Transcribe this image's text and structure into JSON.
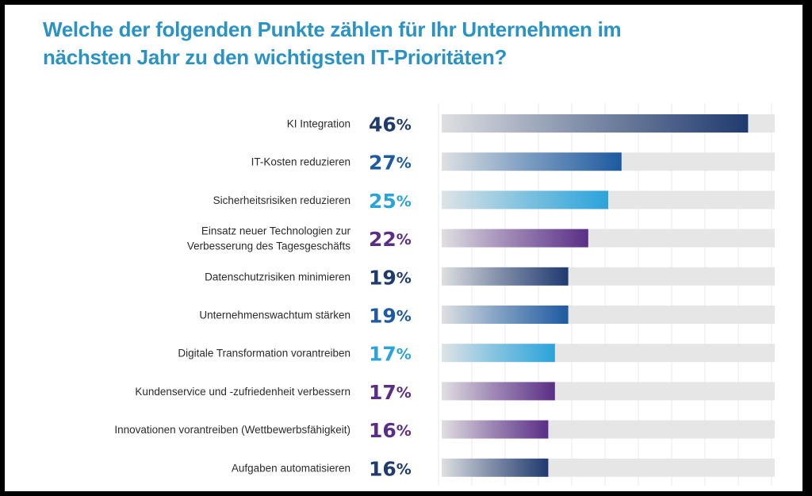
{
  "title_line1": "Welche der folgenden Punkte zählen für Ihr Unternehmen im",
  "title_line2": "nächsten Jahr zu den wichtigsten IT-Prioritäten?",
  "chart_data": {
    "type": "bar",
    "orientation": "horizontal",
    "title": "Welche der folgenden Punkte zählen für Ihr Unternehmen im nächsten Jahr zu den wichtigsten IT-Prioritäten?",
    "xlabel": "",
    "ylabel": "",
    "unit": "%",
    "xlim": [
      0,
      50
    ],
    "grid": true,
    "grid_step": 5,
    "legend": "none",
    "categories": [
      [
        "KI Integration"
      ],
      [
        "IT-Kosten reduzieren"
      ],
      [
        "Sicherheitsrisiken reduzieren"
      ],
      [
        "Einsatz neuer Technologien zur",
        "Verbesserung des Tagesgeschäfts"
      ],
      [
        "Datenschutzrisiken minimieren"
      ],
      [
        "Unternehmenswachtum stärken"
      ],
      [
        "Digitale Transformation vorantreiben"
      ],
      [
        "Kundenservice und -zufriedenheit verbessern"
      ],
      [
        "Innovationen vorantreiben (Wettbewerbsfähigkeit)"
      ],
      [
        "Aufgaben automatisieren"
      ]
    ],
    "values": [
      46,
      27,
      25,
      22,
      19,
      19,
      17,
      17,
      16,
      16
    ],
    "value_labels": [
      "46",
      "27",
      "25",
      "22",
      "19",
      "19",
      "17",
      "17",
      "16",
      "16"
    ],
    "percent_sign": "%",
    "bar_colors": [
      "#1f3a6e",
      "#1d5aa0",
      "#2aa3da",
      "#5a2e86",
      "#1f3a6e",
      "#1d5aa0",
      "#2aa3da",
      "#5a2e86",
      "#5a2e86",
      "#1f3a6e"
    ],
    "track_color": "#e6e6e6",
    "grid_color": "#ececec"
  },
  "colors": {
    "title": "#2a93c4",
    "label_text": "#2b2b2b",
    "background": "#ffffff",
    "frame": "#000000"
  }
}
